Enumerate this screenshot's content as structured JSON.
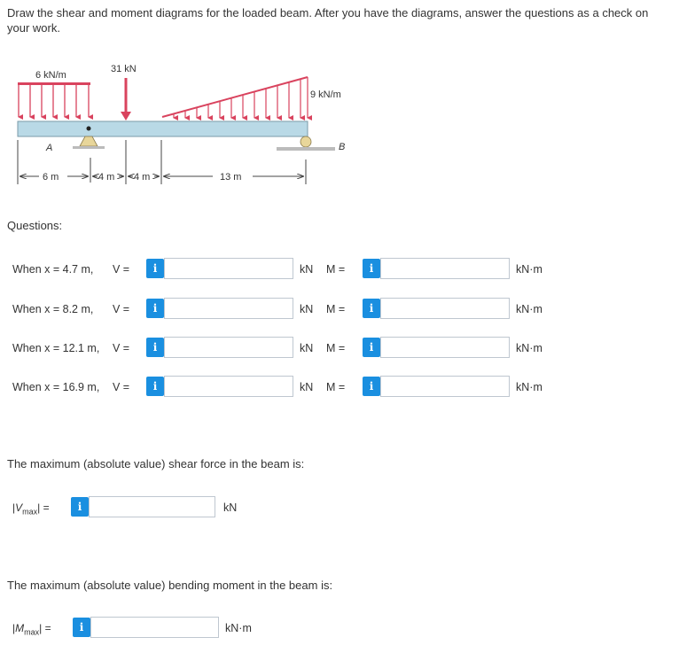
{
  "instructions": "Draw the shear and moment diagrams for the loaded beam. After you have the diagrams, answer the questions as a check on your work.",
  "diagram": {
    "dist_load_left": "6 kN/m",
    "point_load": "31 kN",
    "dist_load_right": "9 kN/m",
    "support_a": "A",
    "support_b": "B",
    "dim_1": "6 m",
    "dim_2": "4 m",
    "dim_3": "4 m",
    "dim_4": "13 m"
  },
  "questions_heading": "Questions:",
  "rows": [
    {
      "label": "When x = 4.7 m,",
      "v_label": "V =",
      "v_unit": "kN",
      "m_label": "M =",
      "m_unit": "kN·m",
      "v_value": "",
      "m_value": ""
    },
    {
      "label": "When x = 8.2 m,",
      "v_label": "V =",
      "v_unit": "kN",
      "m_label": "M =",
      "m_unit": "kN·m",
      "v_value": "",
      "m_value": ""
    },
    {
      "label": "When x = 12.1 m,",
      "v_label": "V =",
      "v_unit": "kN",
      "m_label": "M =",
      "m_unit": "kN·m",
      "v_value": "",
      "m_value": ""
    },
    {
      "label": "When x = 16.9 m,",
      "v_label": "V =",
      "v_unit": "kN",
      "m_label": "M =",
      "m_unit": "kN·m",
      "v_value": "",
      "m_value": ""
    }
  ],
  "info_glyph": "i",
  "vmax": {
    "prompt": "The maximum (absolute value) shear force in the beam is:",
    "symbol": "V",
    "subscript": "max",
    "equals": "=",
    "value": "",
    "unit": "kN"
  },
  "mmax": {
    "prompt": "The maximum (absolute value) bending moment in the beam is:",
    "symbol": "M",
    "subscript": "max",
    "equals": "=",
    "value": "",
    "unit": "kN·m"
  },
  "colors": {
    "info_button": "#1a8fe0",
    "beam": "#b9d9e6",
    "load_arrows": "#d9435e",
    "support": "#e8d69a"
  }
}
